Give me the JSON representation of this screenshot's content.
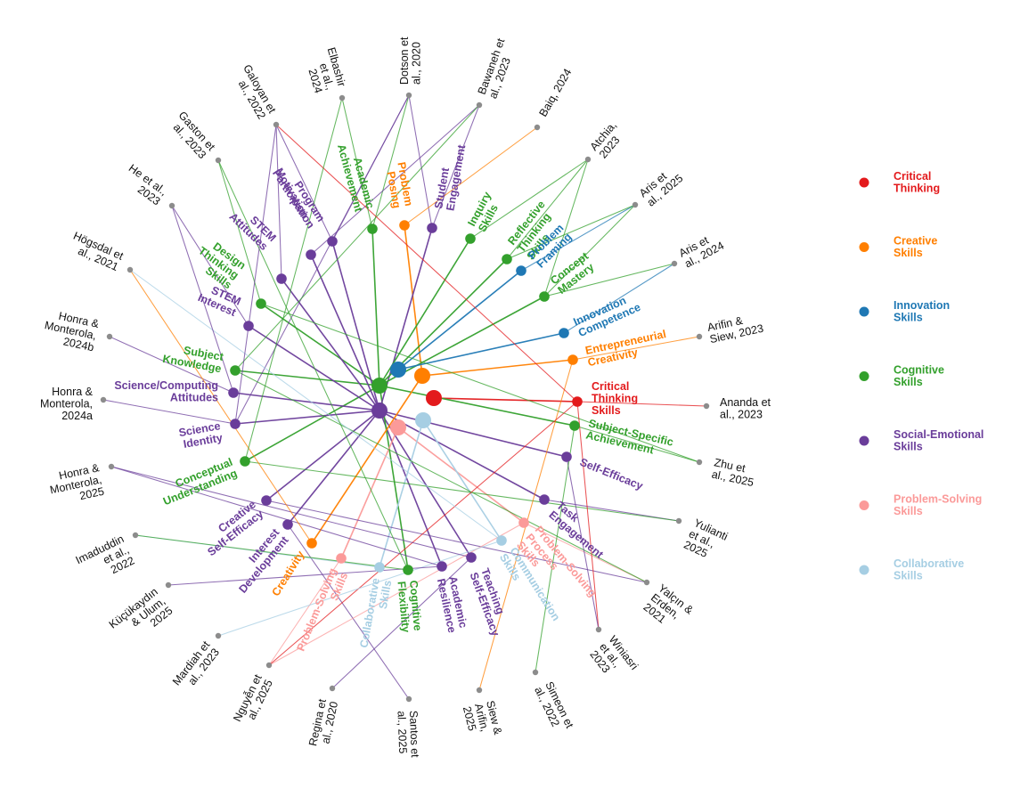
{
  "categories": [
    {
      "id": "critical",
      "label": [
        "Critical",
        "Thinking"
      ],
      "color": "#e31a1c"
    },
    {
      "id": "creative",
      "label": [
        "Creative",
        "Skills"
      ],
      "color": "#ff7f00"
    },
    {
      "id": "innovation",
      "label": [
        "Innovation",
        "Skills"
      ],
      "color": "#1f78b4"
    },
    {
      "id": "cognitive",
      "label": [
        "Cognitive",
        "Skills"
      ],
      "color": "#33a02c"
    },
    {
      "id": "social",
      "label": [
        "Social-Emotional",
        "Skills"
      ],
      "color": "#6a3d9a"
    },
    {
      "id": "problem",
      "label": [
        "Problem-Solving",
        "Skills"
      ],
      "color": "#fb9a99"
    },
    {
      "id": "collab",
      "label": [
        "Collaborative",
        "Skills"
      ],
      "color": "#a6cee3"
    }
  ],
  "studies": [
    {
      "id": "s0",
      "label": [
        "Dotson et",
        "al., 2020"
      ]
    },
    {
      "id": "s1",
      "label": [
        "Bawaneh et",
        "al., 2023"
      ]
    },
    {
      "id": "s2",
      "label": [
        "Baiq, 2024"
      ]
    },
    {
      "id": "s3",
      "label": [
        "Atchia,",
        "2023"
      ]
    },
    {
      "id": "s4",
      "label": [
        "Aris et",
        "al., 2025"
      ]
    },
    {
      "id": "s5",
      "label": [
        "Aris et",
        "al., 2024"
      ]
    },
    {
      "id": "s6",
      "label": [
        "Arifin &",
        "Siew, 2023"
      ]
    },
    {
      "id": "s7",
      "label": [
        "Ananda et",
        "al., 2023"
      ]
    },
    {
      "id": "s8",
      "label": [
        "Zhu et",
        "al., 2025"
      ]
    },
    {
      "id": "s9",
      "label": [
        "Yulianti",
        "et al.,",
        "2025"
      ]
    },
    {
      "id": "s10",
      "label": [
        "Yalçın &",
        "Erden,",
        "2021"
      ]
    },
    {
      "id": "s11",
      "label": [
        "Winiasri",
        "et al.,",
        "2023"
      ]
    },
    {
      "id": "s12",
      "label": [
        "Simeon et",
        "al., 2022"
      ]
    },
    {
      "id": "s13",
      "label": [
        "Siew &",
        "Arifin,",
        "2025"
      ]
    },
    {
      "id": "s14",
      "label": [
        "Santos et",
        "al., 2025"
      ]
    },
    {
      "id": "s15",
      "label": [
        "Regina et",
        "al., 2020"
      ]
    },
    {
      "id": "s16",
      "label": [
        "Nguyễn et",
        "al., 2025"
      ]
    },
    {
      "id": "s17",
      "label": [
        "Mardiah et",
        "al., 2023"
      ]
    },
    {
      "id": "s18",
      "label": [
        "Küçükaydın",
        "& Ulum,",
        "2025"
      ]
    },
    {
      "id": "s19",
      "label": [
        "Imaduddin",
        "et al.,",
        "2022"
      ]
    },
    {
      "id": "s20",
      "label": [
        "Honra &",
        "Monterola,",
        "2025"
      ]
    },
    {
      "id": "s21",
      "label": [
        "Honra &",
        "Monterola,",
        "2024a"
      ]
    },
    {
      "id": "s22",
      "label": [
        "Honra &",
        "Monterola,",
        "2024b"
      ]
    },
    {
      "id": "s23",
      "label": [
        "Högsdal et",
        "al., 2021"
      ]
    },
    {
      "id": "s24",
      "label": [
        "He et al.,",
        "2023"
      ]
    },
    {
      "id": "s25",
      "label": [
        "Gaston et",
        "al., 2023"
      ]
    },
    {
      "id": "s26",
      "label": [
        "Galoyan et",
        "al., 2022"
      ]
    },
    {
      "id": "s27",
      "label": [
        "Elbashir",
        "et al.,",
        "2024"
      ]
    }
  ],
  "outcomes": [
    {
      "id": "o_ct",
      "cat": "critical",
      "label": [
        "Critical",
        "Thinking",
        "Skills"
      ]
    },
    {
      "id": "o_ssa",
      "cat": "cognitive",
      "label": [
        "Subject-Specific",
        "Achievement"
      ]
    },
    {
      "id": "o_se",
      "cat": "social",
      "label": [
        "Self-Efficacy"
      ]
    },
    {
      "id": "o_te",
      "cat": "social",
      "label": [
        "Task",
        "Engagement"
      ]
    },
    {
      "id": "o_pss",
      "cat": "problem",
      "label": [
        "Problem-Solving",
        "Process",
        "Skills"
      ]
    },
    {
      "id": "o_com",
      "cat": "collab",
      "label": [
        "Communication",
        "Skills"
      ]
    },
    {
      "id": "o_tse",
      "cat": "social",
      "label": [
        "Teaching",
        "Self-Efficacy"
      ]
    },
    {
      "id": "o_ar",
      "cat": "social",
      "label": [
        "Academic",
        "Resilience"
      ]
    },
    {
      "id": "o_cf",
      "cat": "cognitive",
      "label": [
        "Cognitive",
        "Flexibility"
      ]
    },
    {
      "id": "o_cs",
      "cat": "collab",
      "label": [
        "Collaborative",
        "Skills"
      ]
    },
    {
      "id": "o_ps",
      "cat": "problem",
      "label": [
        "Problem-Solving",
        "Skills"
      ]
    },
    {
      "id": "o_cr",
      "cat": "creative",
      "label": [
        "Creativity"
      ]
    },
    {
      "id": "o_id",
      "cat": "social",
      "label": [
        "Interest",
        "Development"
      ]
    },
    {
      "id": "o_cse",
      "cat": "social",
      "label": [
        "Creative",
        "Self-Efficacy"
      ]
    },
    {
      "id": "o_cu",
      "cat": "cognitive",
      "label": [
        "Conceptual",
        "Understanding"
      ]
    },
    {
      "id": "o_si",
      "cat": "social",
      "label": [
        "Science",
        "Identity"
      ]
    },
    {
      "id": "o_sca",
      "cat": "social",
      "label": [
        "Science/Computing",
        "Attitudes"
      ]
    },
    {
      "id": "o_sk",
      "cat": "cognitive",
      "label": [
        "Subject",
        "Knowledge"
      ]
    },
    {
      "id": "o_stint",
      "cat": "social",
      "label": [
        "STEM",
        "Interest"
      ]
    },
    {
      "id": "o_dts",
      "cat": "cognitive",
      "label": [
        "Design",
        "Thinking",
        "Skills"
      ]
    },
    {
      "id": "o_stat",
      "cat": "social",
      "label": [
        "STEM",
        "Attitudes"
      ]
    },
    {
      "id": "o_mot",
      "cat": "social",
      "label": [
        "Motivation"
      ]
    },
    {
      "id": "o_pp",
      "cat": "social",
      "label": [
        "Program",
        "Participation"
      ]
    },
    {
      "id": "o_aa",
      "cat": "cognitive",
      "label": [
        "Academic",
        "Achievement"
      ]
    },
    {
      "id": "o_pp2",
      "cat": "creative",
      "label": [
        "Problem",
        "Posing"
      ]
    },
    {
      "id": "o_sen",
      "cat": "social",
      "label": [
        "Student",
        "Engagement"
      ]
    },
    {
      "id": "o_is",
      "cat": "cognitive",
      "label": [
        "Inquiry",
        "Skills"
      ]
    },
    {
      "id": "o_rts",
      "cat": "cognitive",
      "label": [
        "Reflective",
        "Thinking",
        "Skills"
      ]
    },
    {
      "id": "o_pf",
      "cat": "innovation",
      "label": [
        "Problem",
        "Framing"
      ]
    },
    {
      "id": "o_cm",
      "cat": "cognitive",
      "label": [
        "Concept",
        "Mastery"
      ]
    },
    {
      "id": "o_ic",
      "cat": "innovation",
      "label": [
        "Innovation",
        "Competence"
      ]
    },
    {
      "id": "o_ec",
      "cat": "creative",
      "label": [
        "Entrepreneurial",
        "Creativity"
      ]
    }
  ],
  "links": [
    [
      "s0",
      "o_sen"
    ],
    [
      "s0",
      "o_aa"
    ],
    [
      "s0",
      "o_pp"
    ],
    [
      "s0",
      "o_si"
    ],
    [
      "s1",
      "o_sen"
    ],
    [
      "s1",
      "o_mot"
    ],
    [
      "s1",
      "o_sk"
    ],
    [
      "s2",
      "o_pp2"
    ],
    [
      "s3",
      "o_is"
    ],
    [
      "s3",
      "o_rts"
    ],
    [
      "s3",
      "o_cm"
    ],
    [
      "s4",
      "o_pf"
    ],
    [
      "s4",
      "o_rts"
    ],
    [
      "s4",
      "o_cm"
    ],
    [
      "s5",
      "o_ic"
    ],
    [
      "s5",
      "o_cm"
    ],
    [
      "s6",
      "o_ec"
    ],
    [
      "s7",
      "o_ct"
    ],
    [
      "s8",
      "o_ssa"
    ],
    [
      "s8",
      "o_dts"
    ],
    [
      "s9",
      "o_te"
    ],
    [
      "s9",
      "o_cu"
    ],
    [
      "s10",
      "o_pss"
    ],
    [
      "s10",
      "o_sk"
    ],
    [
      "s10",
      "o_cse"
    ],
    [
      "s11",
      "o_ct"
    ],
    [
      "s11",
      "o_se"
    ],
    [
      "s12",
      "o_ssa"
    ],
    [
      "s13",
      "o_ec"
    ],
    [
      "s14",
      "o_id"
    ],
    [
      "s15",
      "o_tse"
    ],
    [
      "s16",
      "o_pss"
    ],
    [
      "s16",
      "o_ct"
    ],
    [
      "s16",
      "o_ps"
    ],
    [
      "s17",
      "o_com"
    ],
    [
      "s18",
      "o_ar"
    ],
    [
      "s19",
      "o_cs"
    ],
    [
      "s19",
      "o_cf"
    ],
    [
      "s20",
      "o_tse"
    ],
    [
      "s20",
      "o_ar"
    ],
    [
      "s21",
      "o_si"
    ],
    [
      "s22",
      "o_sca"
    ],
    [
      "s23",
      "o_cr"
    ],
    [
      "s23",
      "o_com"
    ],
    [
      "s24",
      "o_stint"
    ],
    [
      "s24",
      "o_sca"
    ],
    [
      "s25",
      "o_dts"
    ],
    [
      "s25",
      "o_cf"
    ],
    [
      "s26",
      "o_stat"
    ],
    [
      "s26",
      "o_pp"
    ],
    [
      "s26",
      "o_ct"
    ],
    [
      "s26",
      "o_si"
    ],
    [
      "s27",
      "o_aa"
    ],
    [
      "s27",
      "o_cu"
    ]
  ]
}
